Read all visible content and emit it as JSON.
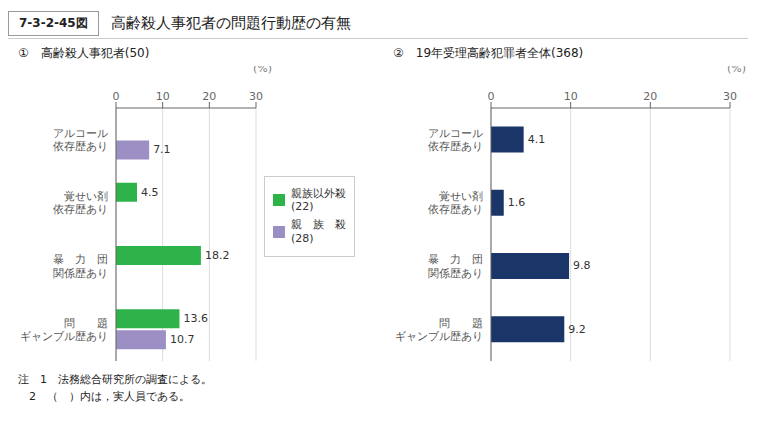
{
  "title": "高齢殺人事犯者の問題行動歴の有無",
  "annotations": [
    "7-3-2-45図",
    "注　1　法務総合研究所の調査による。",
    "　2　（　）内は，実人員である。"
  ],
  "chart_data": [
    {
      "type": "bar",
      "orientation": "horizontal",
      "title": "①　高齢殺人事犯者(50)",
      "x_label": "(%)",
      "categories": [
        "アルコール\n依存歴あり",
        "覚せい剤\n依存歴あり",
        "暴　力　団\n関係歴あり",
        "問　　題\nギャンブル歴あり"
      ],
      "series": [
        {
          "name": "親族以外殺\n(22)",
          "color": "#2db34a",
          "values": [
            null,
            4.5,
            18.2,
            13.6
          ]
        },
        {
          "name": "親　族　殺\n(28)",
          "color": "#9b8fc4",
          "values": [
            7.1,
            null,
            null,
            10.7
          ]
        }
      ],
      "xlim": [
        0,
        30
      ],
      "xticks": [
        0,
        10,
        20,
        30
      ],
      "grid": true,
      "legend": "right",
      "data_labels": true
    },
    {
      "type": "bar",
      "orientation": "horizontal",
      "title": "②　19年受理高齢犯罪者全体(368)",
      "x_label": "(%)",
      "categories": [
        "アルコール\n依存歴あり",
        "覚せい剤\n依存歴あり",
        "暴　力　団\n関係歴あり",
        "問　　題\nギャンブル歴あり"
      ],
      "values": [
        4.1,
        1.6,
        9.8,
        9.2
      ],
      "color": "#1a3568",
      "xlim": [
        0,
        30
      ],
      "xticks": [
        0,
        10,
        20,
        30
      ],
      "grid": true,
      "data_labels": true
    }
  ]
}
